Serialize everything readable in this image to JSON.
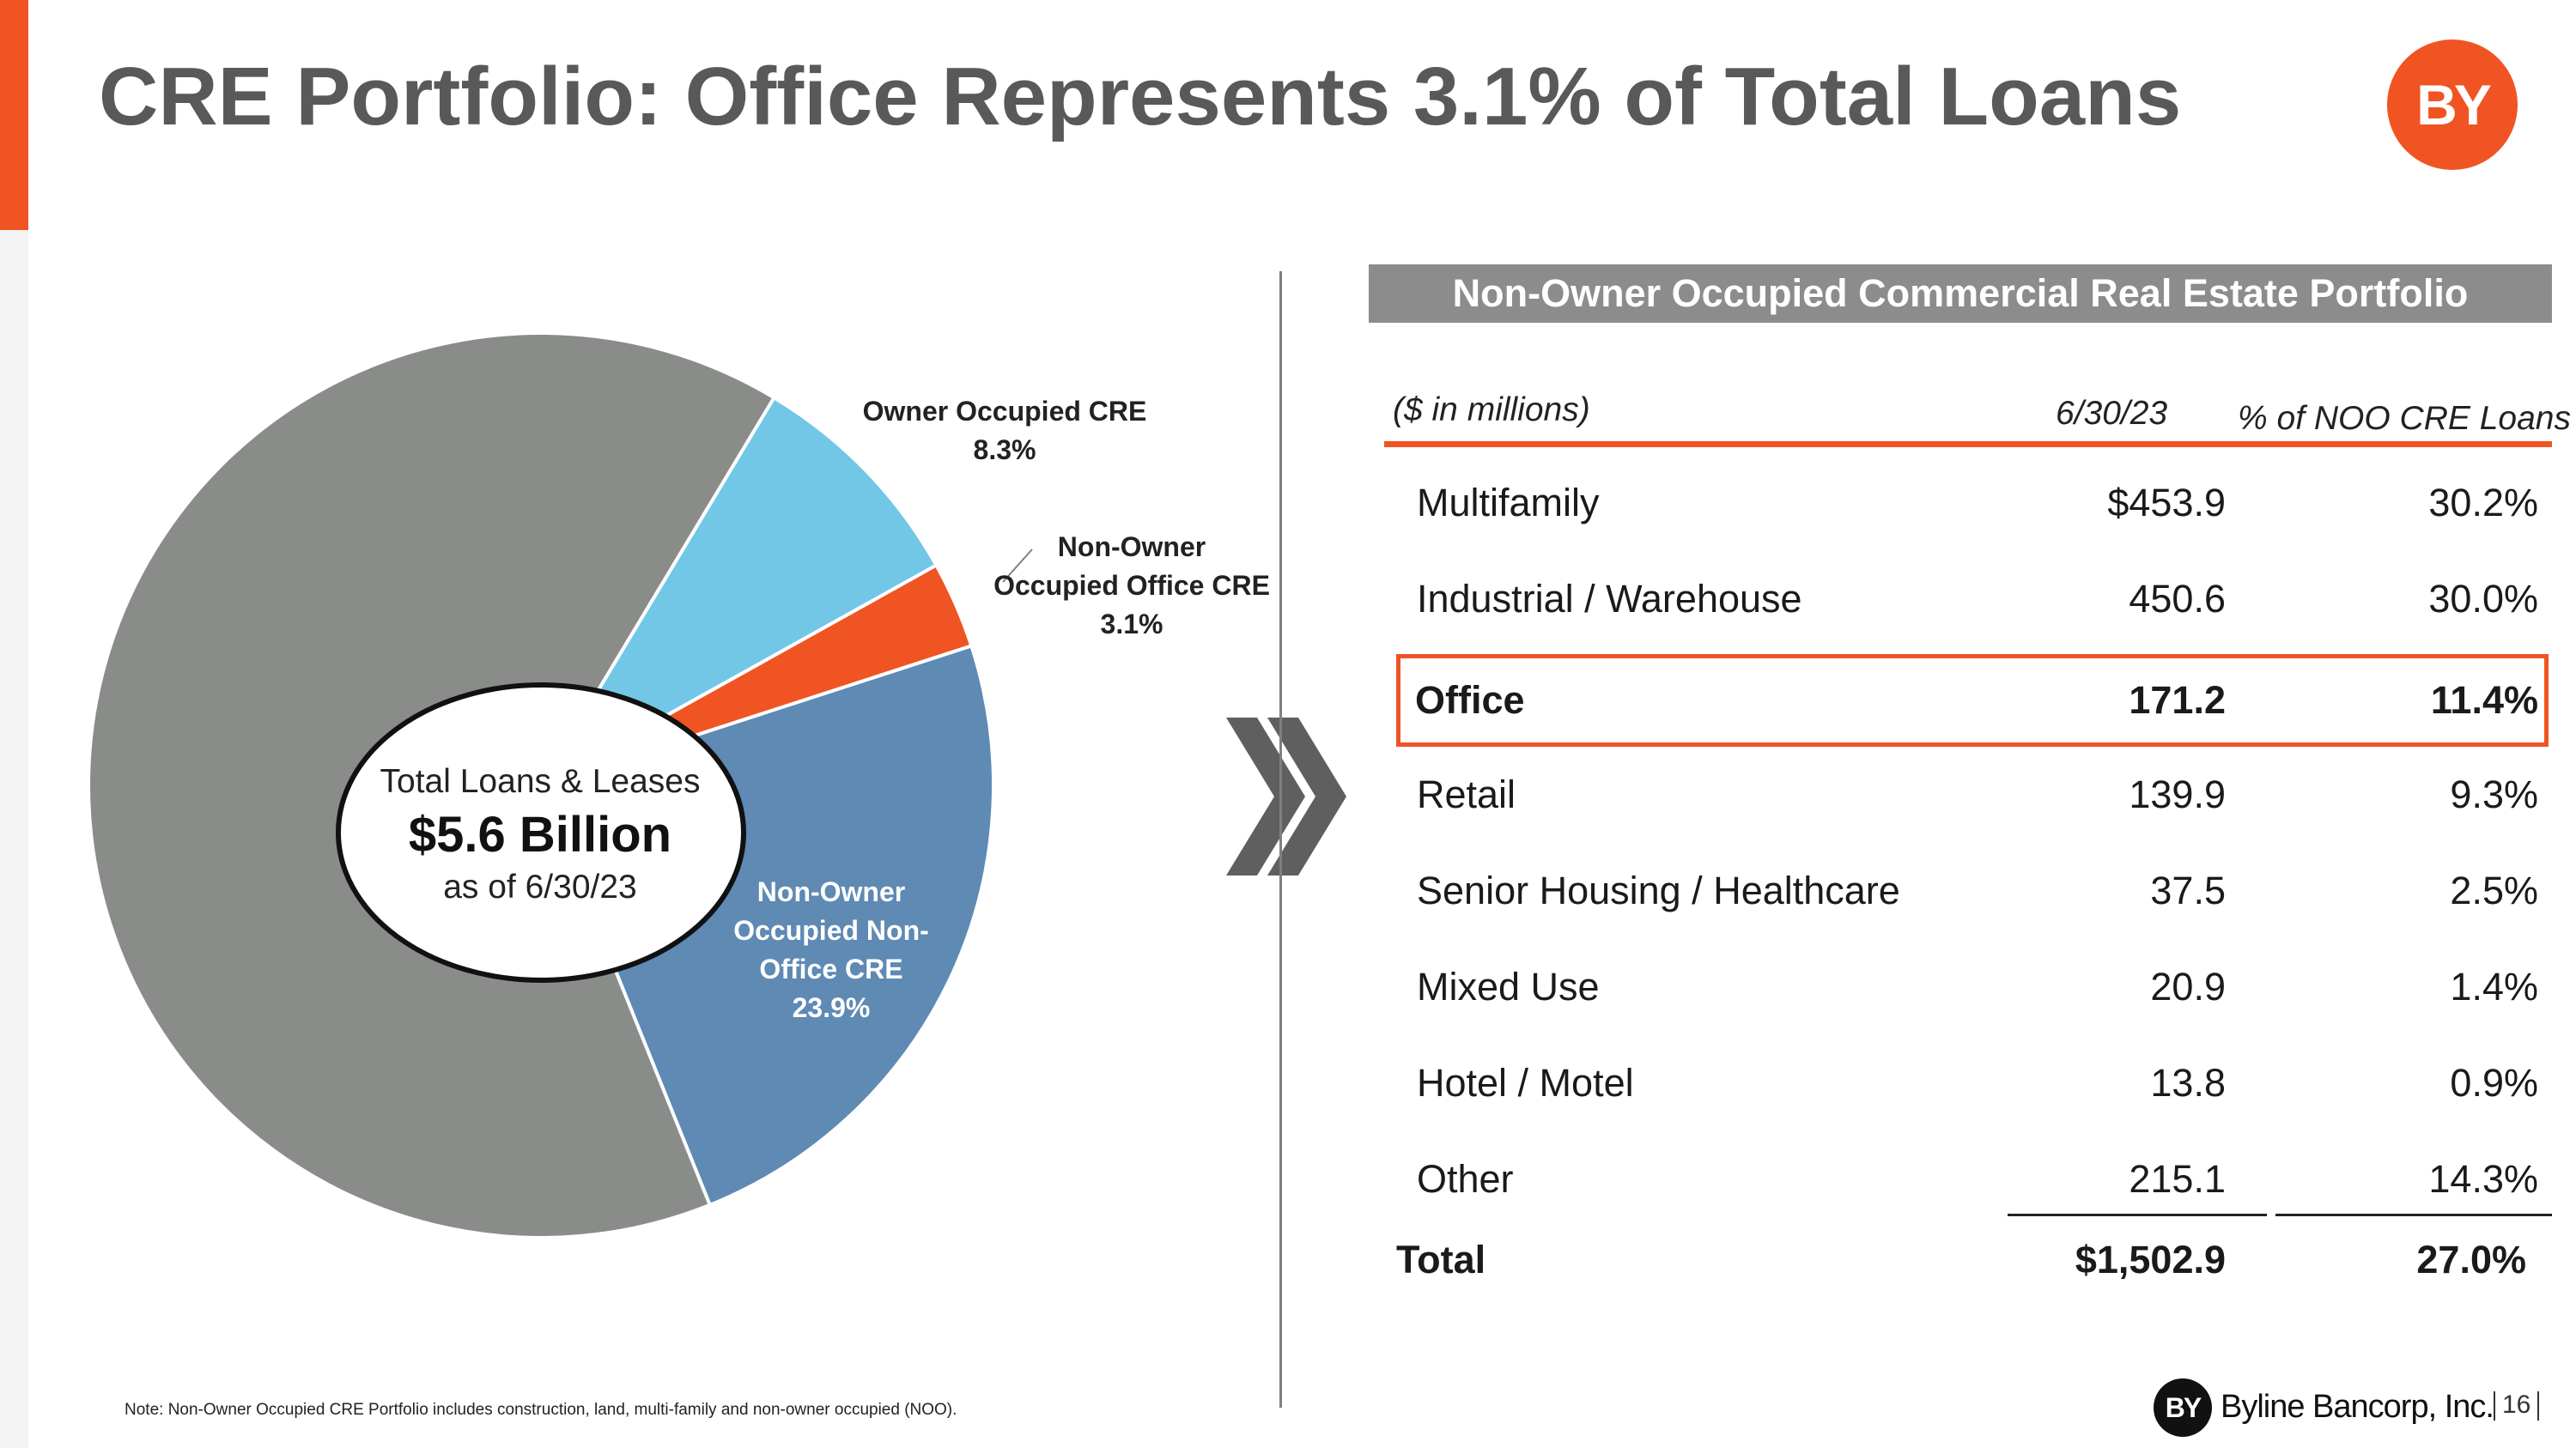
{
  "slide": {
    "title": "CRE Portfolio: Office Represents 3.1% of Total Loans",
    "logo_text": "BY",
    "page_number": "16",
    "footnote": "Note: Non-Owner Occupied CRE Portfolio includes construction, land, multi-family and non-owner occupied (NOO).",
    "brand": "Byline Bancorp, Inc.",
    "brand_logo_text": "BY"
  },
  "colors": {
    "accent": "#f05423",
    "gray_slice": "#8a8c8a",
    "light_blue_slice": "#72c7e7",
    "steel_blue_slice": "#5e8ab4",
    "header_gray": "#8c8c8c"
  },
  "chart_data": {
    "type": "pie",
    "title": "",
    "center": {
      "line1": "Total Loans & Leases",
      "line2": "$5.6 Billion",
      "line3": "as of 6/30/23"
    },
    "slices": [
      {
        "id": "owner-occupied-cre",
        "name": "Owner Occupied CRE",
        "value": 8.3,
        "label": "8.3%",
        "color": "#72c7e7"
      },
      {
        "id": "noo-office-cre",
        "name": "Non-Owner Occupied Office CRE",
        "value": 3.1,
        "label": "3.1%",
        "color": "#f05423"
      },
      {
        "id": "noo-non-office-cre",
        "name": "Non-Owner Occupied Non-Office CRE",
        "value": 23.9,
        "label": "23.9%",
        "color": "#5e8ab4"
      },
      {
        "id": "other-loans",
        "name": "",
        "value": 64.7,
        "label": "",
        "color": "#8a8c8a"
      }
    ],
    "labels": {
      "owner_line1": "Owner Occupied CRE",
      "owner_pct": "8.3%",
      "office_line1": "Non-Owner",
      "office_line2": "Occupied Office CRE",
      "office_pct": "3.1%",
      "nonoffice_line1": "Non-Owner",
      "nonoffice_line2": "Occupied Non-",
      "nonoffice_line3": "Office CRE",
      "nonoffice_pct": "23.9%"
    }
  },
  "table": {
    "title": "Non-Owner Occupied Commercial Real Estate Portfolio",
    "unit_label": "($ in millions)",
    "date_header": "6/30/23",
    "pct_header": "% of NOO CRE Loans",
    "rows": [
      {
        "category": "Multifamily",
        "value": "$453.9",
        "pct": "30.2%"
      },
      {
        "category": "Industrial / Warehouse",
        "value": "450.6",
        "pct": "30.0%"
      },
      {
        "category": "Office",
        "value": "171.2",
        "pct": "11.4%"
      },
      {
        "category": "Retail",
        "value": "139.9",
        "pct": "9.3%"
      },
      {
        "category": "Senior Housing / Healthcare",
        "value": "37.5",
        "pct": "2.5%"
      },
      {
        "category": "Mixed Use",
        "value": "20.9",
        "pct": "1.4%"
      },
      {
        "category": "Hotel / Motel",
        "value": "13.8",
        "pct": "0.9%"
      },
      {
        "category": "Other",
        "value": "215.1",
        "pct": "14.3%"
      }
    ],
    "total": {
      "category": "Total",
      "value": "$1,502.9",
      "pct": "27.0%"
    }
  }
}
